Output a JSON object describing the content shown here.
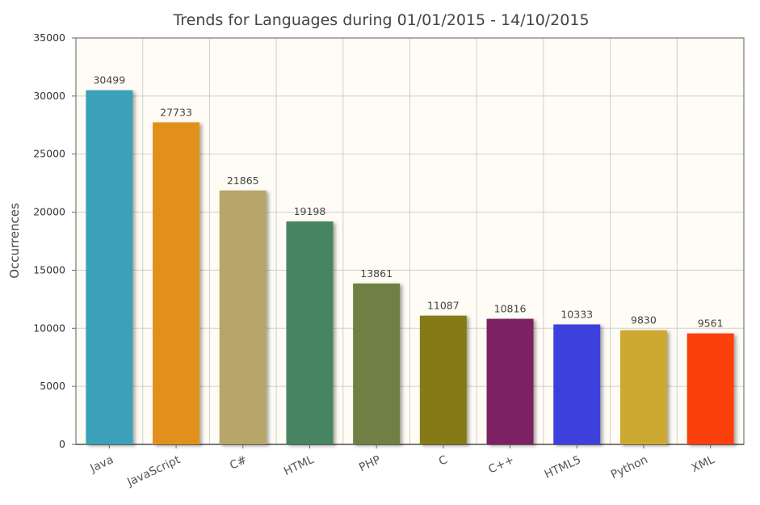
{
  "chart_data": {
    "type": "bar",
    "title": "Trends for Languages during 01/01/2015 - 14/10/2015",
    "xlabel": "",
    "ylabel": "Occurrences",
    "ylim": [
      0,
      35000
    ],
    "yticks": [
      "0",
      "5000",
      "10000",
      "15000",
      "20000",
      "25000",
      "30000",
      "35000"
    ],
    "grid": true,
    "categories": [
      "Java",
      "JavaScript",
      "C#",
      "HTML",
      "PHP",
      "C",
      "C++",
      "HTML5",
      "Python",
      "XML"
    ],
    "values": [
      30499,
      27733,
      21865,
      19198,
      13861,
      11087,
      10816,
      10333,
      9830,
      9561
    ],
    "colors": [
      "#3aa1b8",
      "#e2901f",
      "#b7a56b",
      "#468562",
      "#6f8044",
      "#857a13",
      "#7b2064",
      "#3c3fdc",
      "#cea930",
      "#fb4109"
    ],
    "plot_background": "#fefcf4"
  }
}
